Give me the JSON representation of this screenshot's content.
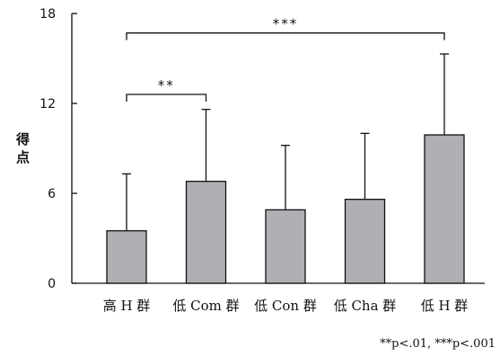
{
  "chart_data": {
    "type": "bar",
    "ylabel": "得点",
    "ylim": [
      0,
      18
    ],
    "yticks": [
      0,
      6,
      12,
      18
    ],
    "categories": [
      "高 H 群",
      "低 Com 群",
      "低 Con 群",
      "低 Cha 群",
      "低 H 群"
    ],
    "values": [
      3.5,
      6.8,
      4.9,
      5.6,
      9.9
    ],
    "error_upper": [
      7.3,
      11.6,
      9.2,
      10.0,
      15.3
    ],
    "bar_color": "#b0b0b4",
    "significance": [
      {
        "from": 0,
        "to": 1,
        "label": "**",
        "level": 12.6
      },
      {
        "from": 0,
        "to": 4,
        "label": "***",
        "level": 16.7
      }
    ],
    "note": "**p<.01, ***p<.001"
  }
}
